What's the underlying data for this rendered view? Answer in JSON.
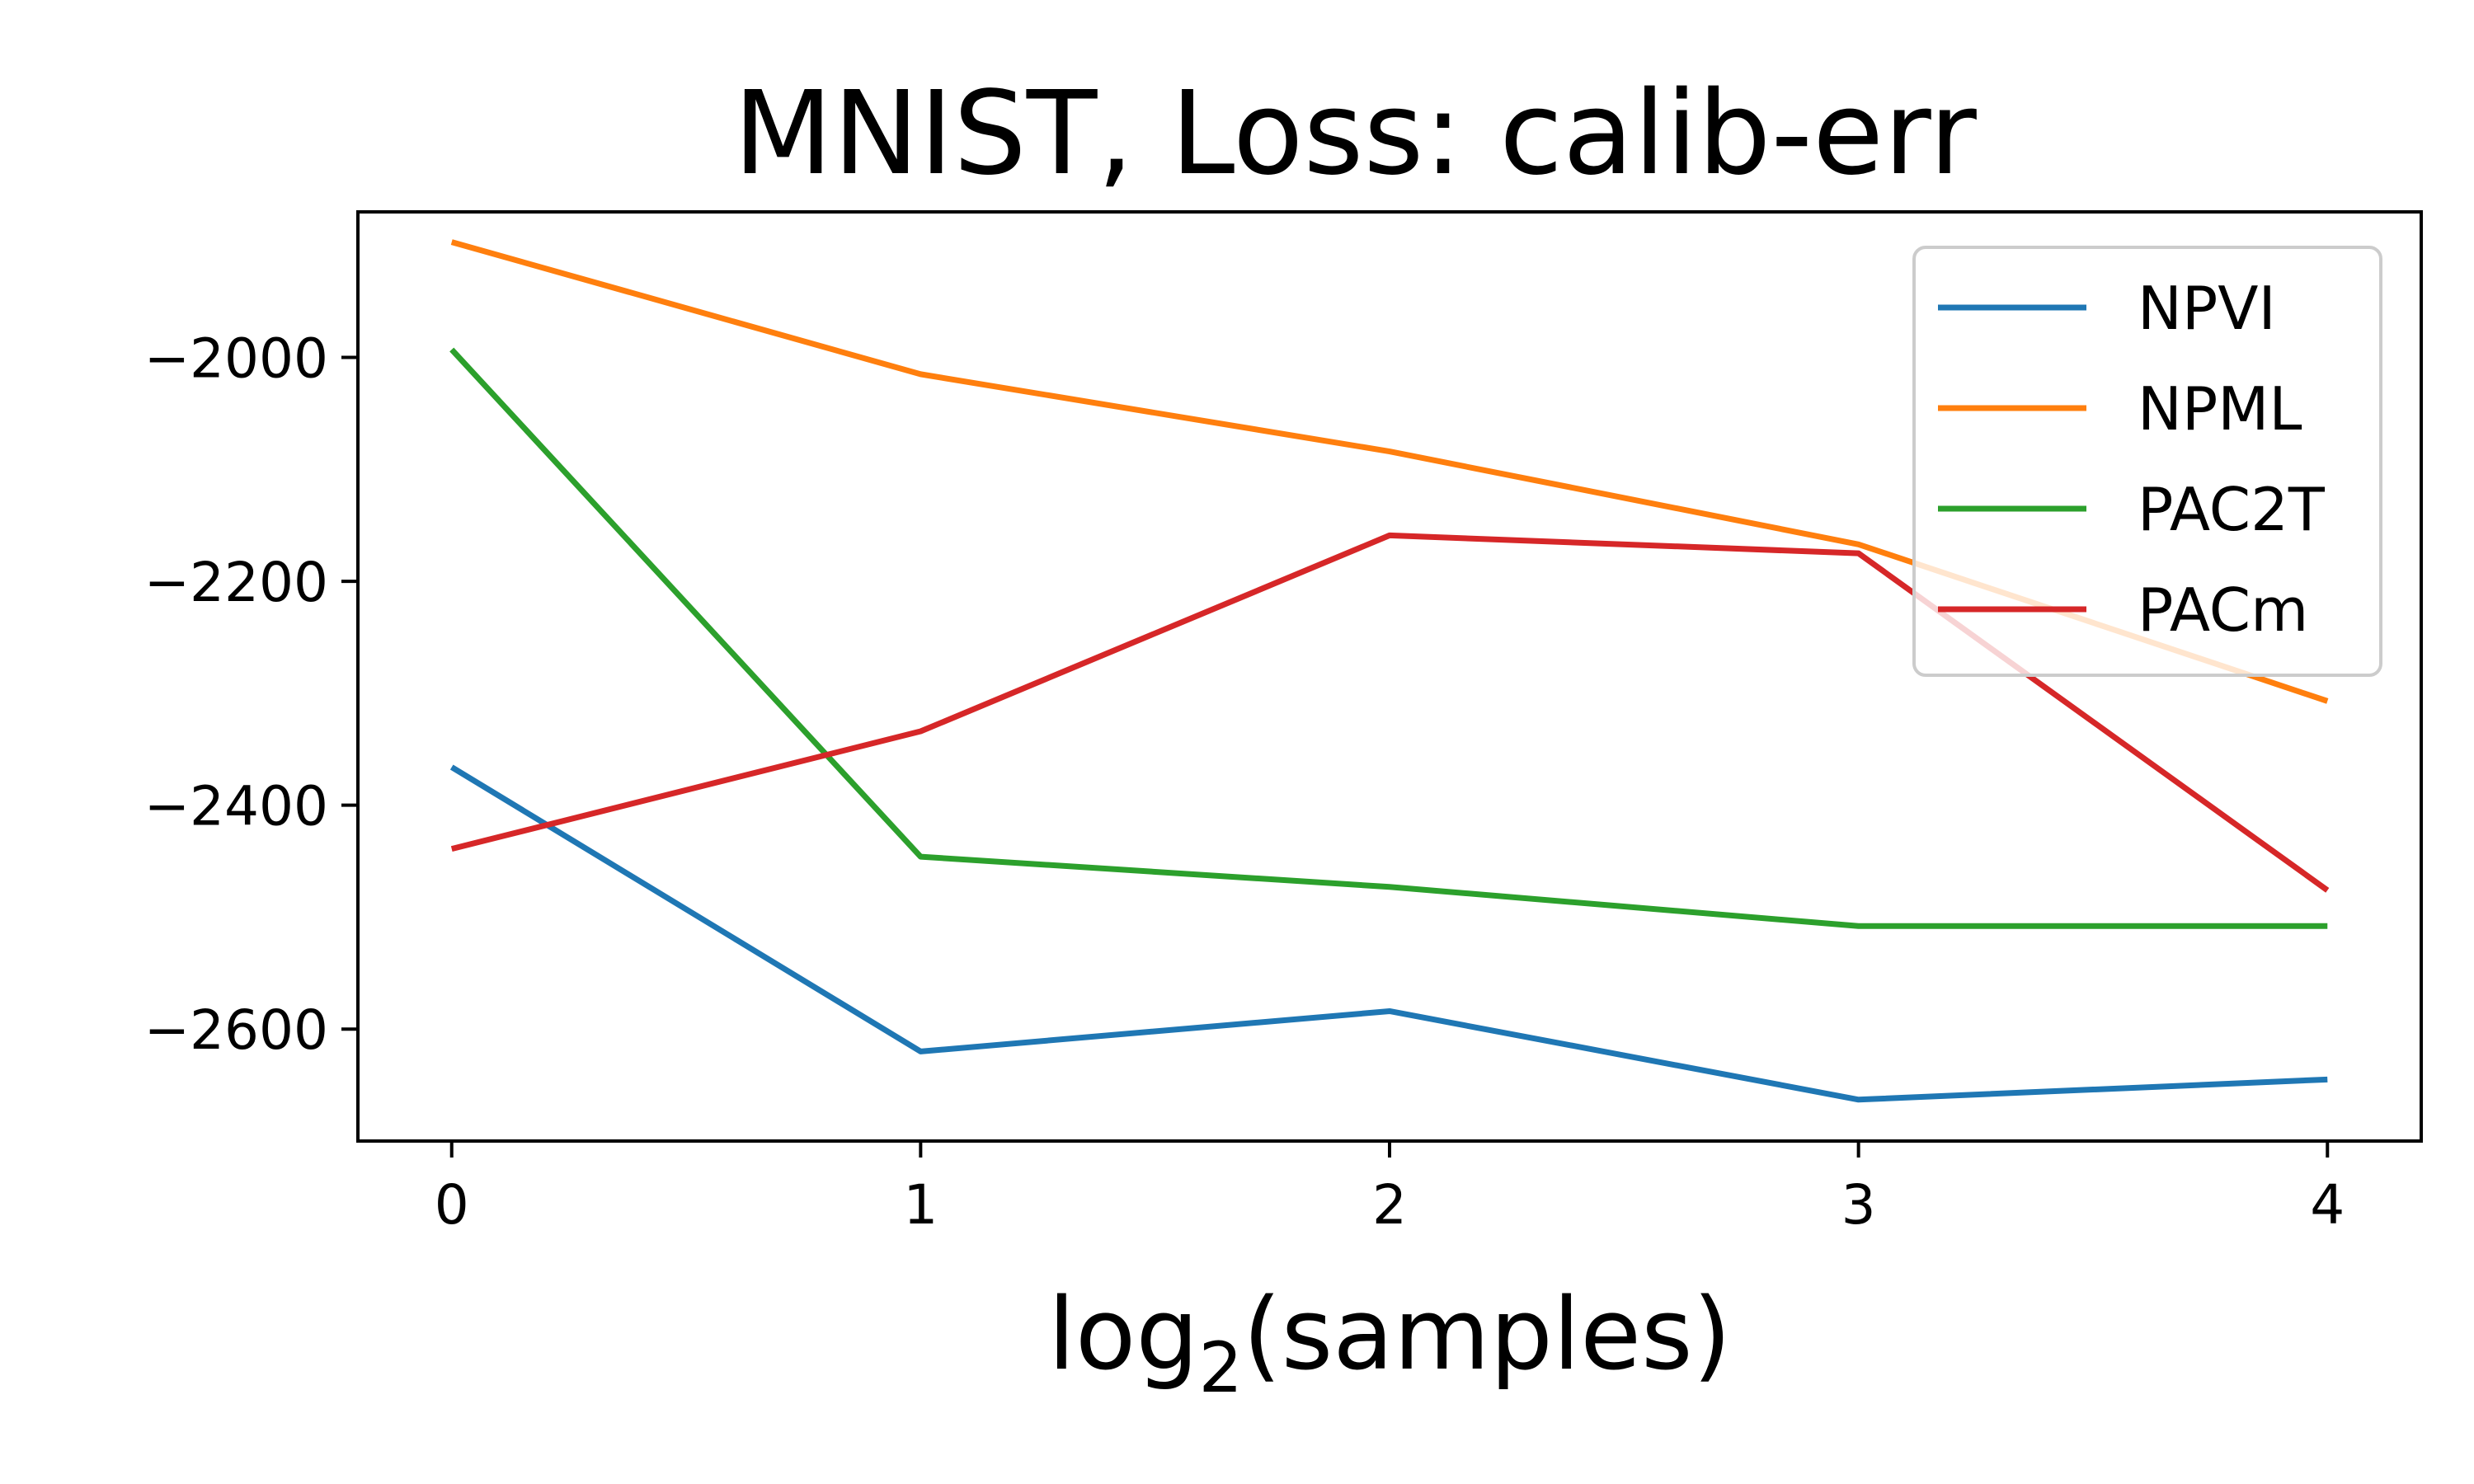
{
  "chart_data": {
    "type": "line",
    "title": "MNIST, Loss: calib-err",
    "xlabel": {
      "base": "log",
      "sub": "2",
      "rest": "(samples)"
    },
    "ylabel": "",
    "x": [
      0,
      1,
      2,
      3,
      4
    ],
    "xlim": [
      -0.2,
      4.2
    ],
    "ylim": [
      -2700,
      -1870
    ],
    "xticks": [
      0,
      1,
      2,
      3,
      4
    ],
    "xtick_labels": [
      "0",
      "1",
      "2",
      "3",
      "4"
    ],
    "yticks": [
      -2000,
      -2200,
      -2400,
      -2600
    ],
    "ytick_labels": [
      "−2000",
      "−2200",
      "−2400",
      "−2600"
    ],
    "grid": false,
    "legend_position": "top-right",
    "series": [
      {
        "name": "NPVI",
        "color": "#1f77b4",
        "values": [
          -2366,
          -2620,
          -2584,
          -2663,
          -2645
        ]
      },
      {
        "name": "NPML",
        "color": "#ff7f0e",
        "values": [
          -1897,
          -2015,
          -2084,
          -2167,
          -2307
        ]
      },
      {
        "name": "PAC2T",
        "color": "#2ca02c",
        "values": [
          -1993,
          -2446,
          -2473,
          -2508,
          -2508
        ]
      },
      {
        "name": "PACm",
        "color": "#d62728",
        "values": [
          -2439,
          -2334,
          -2159,
          -2175,
          -2476
        ]
      }
    ]
  }
}
